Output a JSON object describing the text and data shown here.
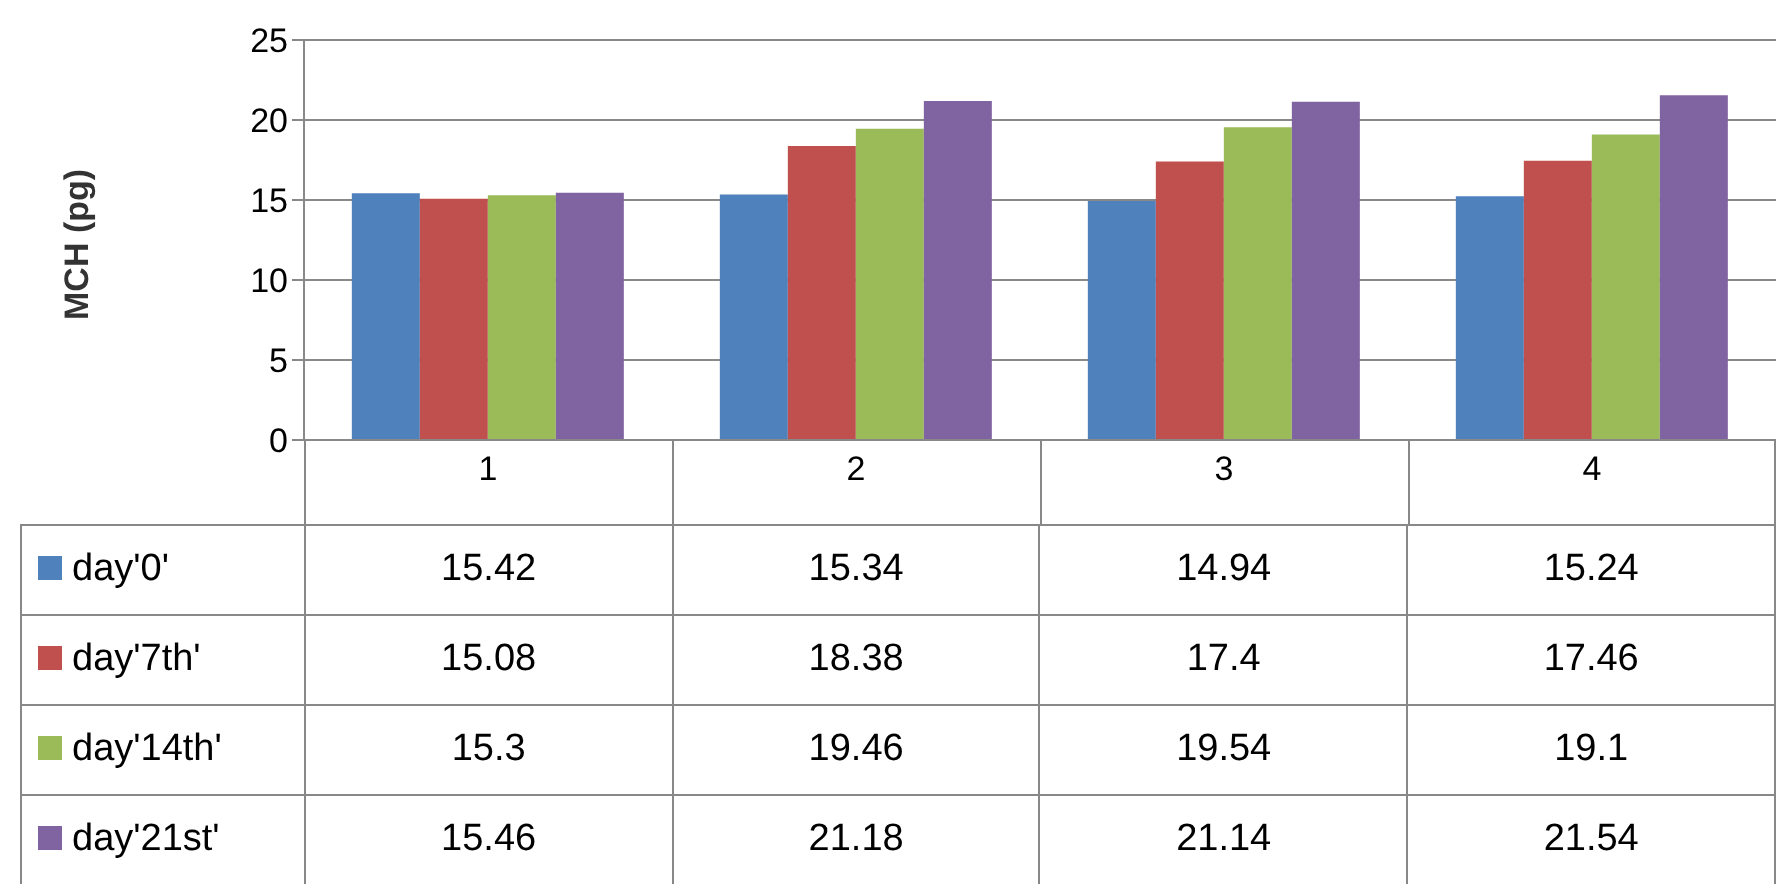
{
  "chart_data": {
    "type": "bar",
    "ylabel": "MCH (pg)",
    "categories": [
      "1",
      "2",
      "3",
      "4"
    ],
    "series": [
      {
        "name": "day'0'",
        "color": "#4f81bd",
        "values": [
          15.42,
          15.34,
          14.94,
          15.24
        ]
      },
      {
        "name": "day'7th'",
        "color": "#c0504d",
        "values": [
          15.08,
          18.38,
          17.4,
          17.46
        ]
      },
      {
        "name": "day'14th'",
        "color": "#9bbb59",
        "values": [
          15.3,
          19.46,
          19.54,
          19.1
        ]
      },
      {
        "name": "day'21st'",
        "color": "#8064a2",
        "values": [
          15.46,
          21.18,
          21.14,
          21.54
        ]
      }
    ],
    "ylim": [
      0,
      25
    ],
    "yticks": [
      0,
      5,
      10,
      15,
      20,
      25
    ],
    "grid": "y",
    "legend": "bottom",
    "data_labels": true
  }
}
